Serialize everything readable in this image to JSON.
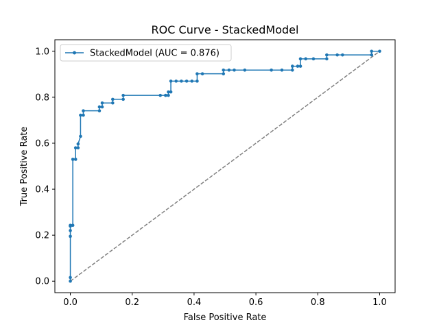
{
  "chart_data": {
    "type": "line",
    "title": "ROC Curve - StackedModel",
    "xlabel": "False Positive Rate",
    "ylabel": "True Positive Rate",
    "xlim": [
      -0.05,
      1.05
    ],
    "ylim": [
      -0.05,
      1.05
    ],
    "xticks": [
      0.0,
      0.2,
      0.4,
      0.6,
      0.8,
      1.0
    ],
    "yticks": [
      0.0,
      0.2,
      0.4,
      0.6,
      0.8,
      1.0
    ],
    "xtick_labels": [
      "0.0",
      "0.2",
      "0.4",
      "0.6",
      "0.8",
      "1.0"
    ],
    "ytick_labels": [
      "0.0",
      "0.2",
      "0.4",
      "0.6",
      "0.8",
      "1.0"
    ],
    "grid": false,
    "legend_position": "upper-left",
    "series": [
      {
        "name": "StackedModel (AUC = 0.876)",
        "color": "#1f77b4",
        "marker": "dot",
        "x": [
          0.0,
          0.0,
          0.0,
          0.0,
          0.0,
          0.0,
          0.0,
          0.008,
          0.008,
          0.017,
          0.017,
          0.025,
          0.025,
          0.033,
          0.033,
          0.042,
          0.042,
          0.094,
          0.094,
          0.103,
          0.103,
          0.137,
          0.137,
          0.171,
          0.171,
          0.291,
          0.308,
          0.308,
          0.317,
          0.317,
          0.325,
          0.325,
          0.342,
          0.359,
          0.376,
          0.393,
          0.41,
          0.41,
          0.427,
          0.495,
          0.495,
          0.513,
          0.53,
          0.564,
          0.65,
          0.684,
          0.718,
          0.718,
          0.735,
          0.744,
          0.744,
          0.761,
          0.786,
          0.829,
          0.829,
          0.863,
          0.88,
          0.974,
          0.974,
          1.0
        ],
        "y": [
          0.0,
          0.016,
          0.195,
          0.22,
          0.24,
          0.24,
          0.243,
          0.243,
          0.53,
          0.53,
          0.58,
          0.58,
          0.597,
          0.63,
          0.722,
          0.722,
          0.741,
          0.741,
          0.758,
          0.758,
          0.775,
          0.775,
          0.791,
          0.791,
          0.808,
          0.808,
          0.808,
          0.808,
          0.808,
          0.823,
          0.823,
          0.87,
          0.87,
          0.87,
          0.87,
          0.87,
          0.87,
          0.902,
          0.902,
          0.902,
          0.918,
          0.918,
          0.918,
          0.918,
          0.918,
          0.918,
          0.918,
          0.935,
          0.935,
          0.935,
          0.967,
          0.967,
          0.967,
          0.967,
          0.984,
          0.984,
          0.984,
          0.984,
          1.0,
          1.0
        ]
      },
      {
        "name": "",
        "color": "#808080",
        "style": "dashed",
        "x": [
          0.0,
          1.0
        ],
        "y": [
          0.0,
          1.0
        ]
      }
    ]
  }
}
